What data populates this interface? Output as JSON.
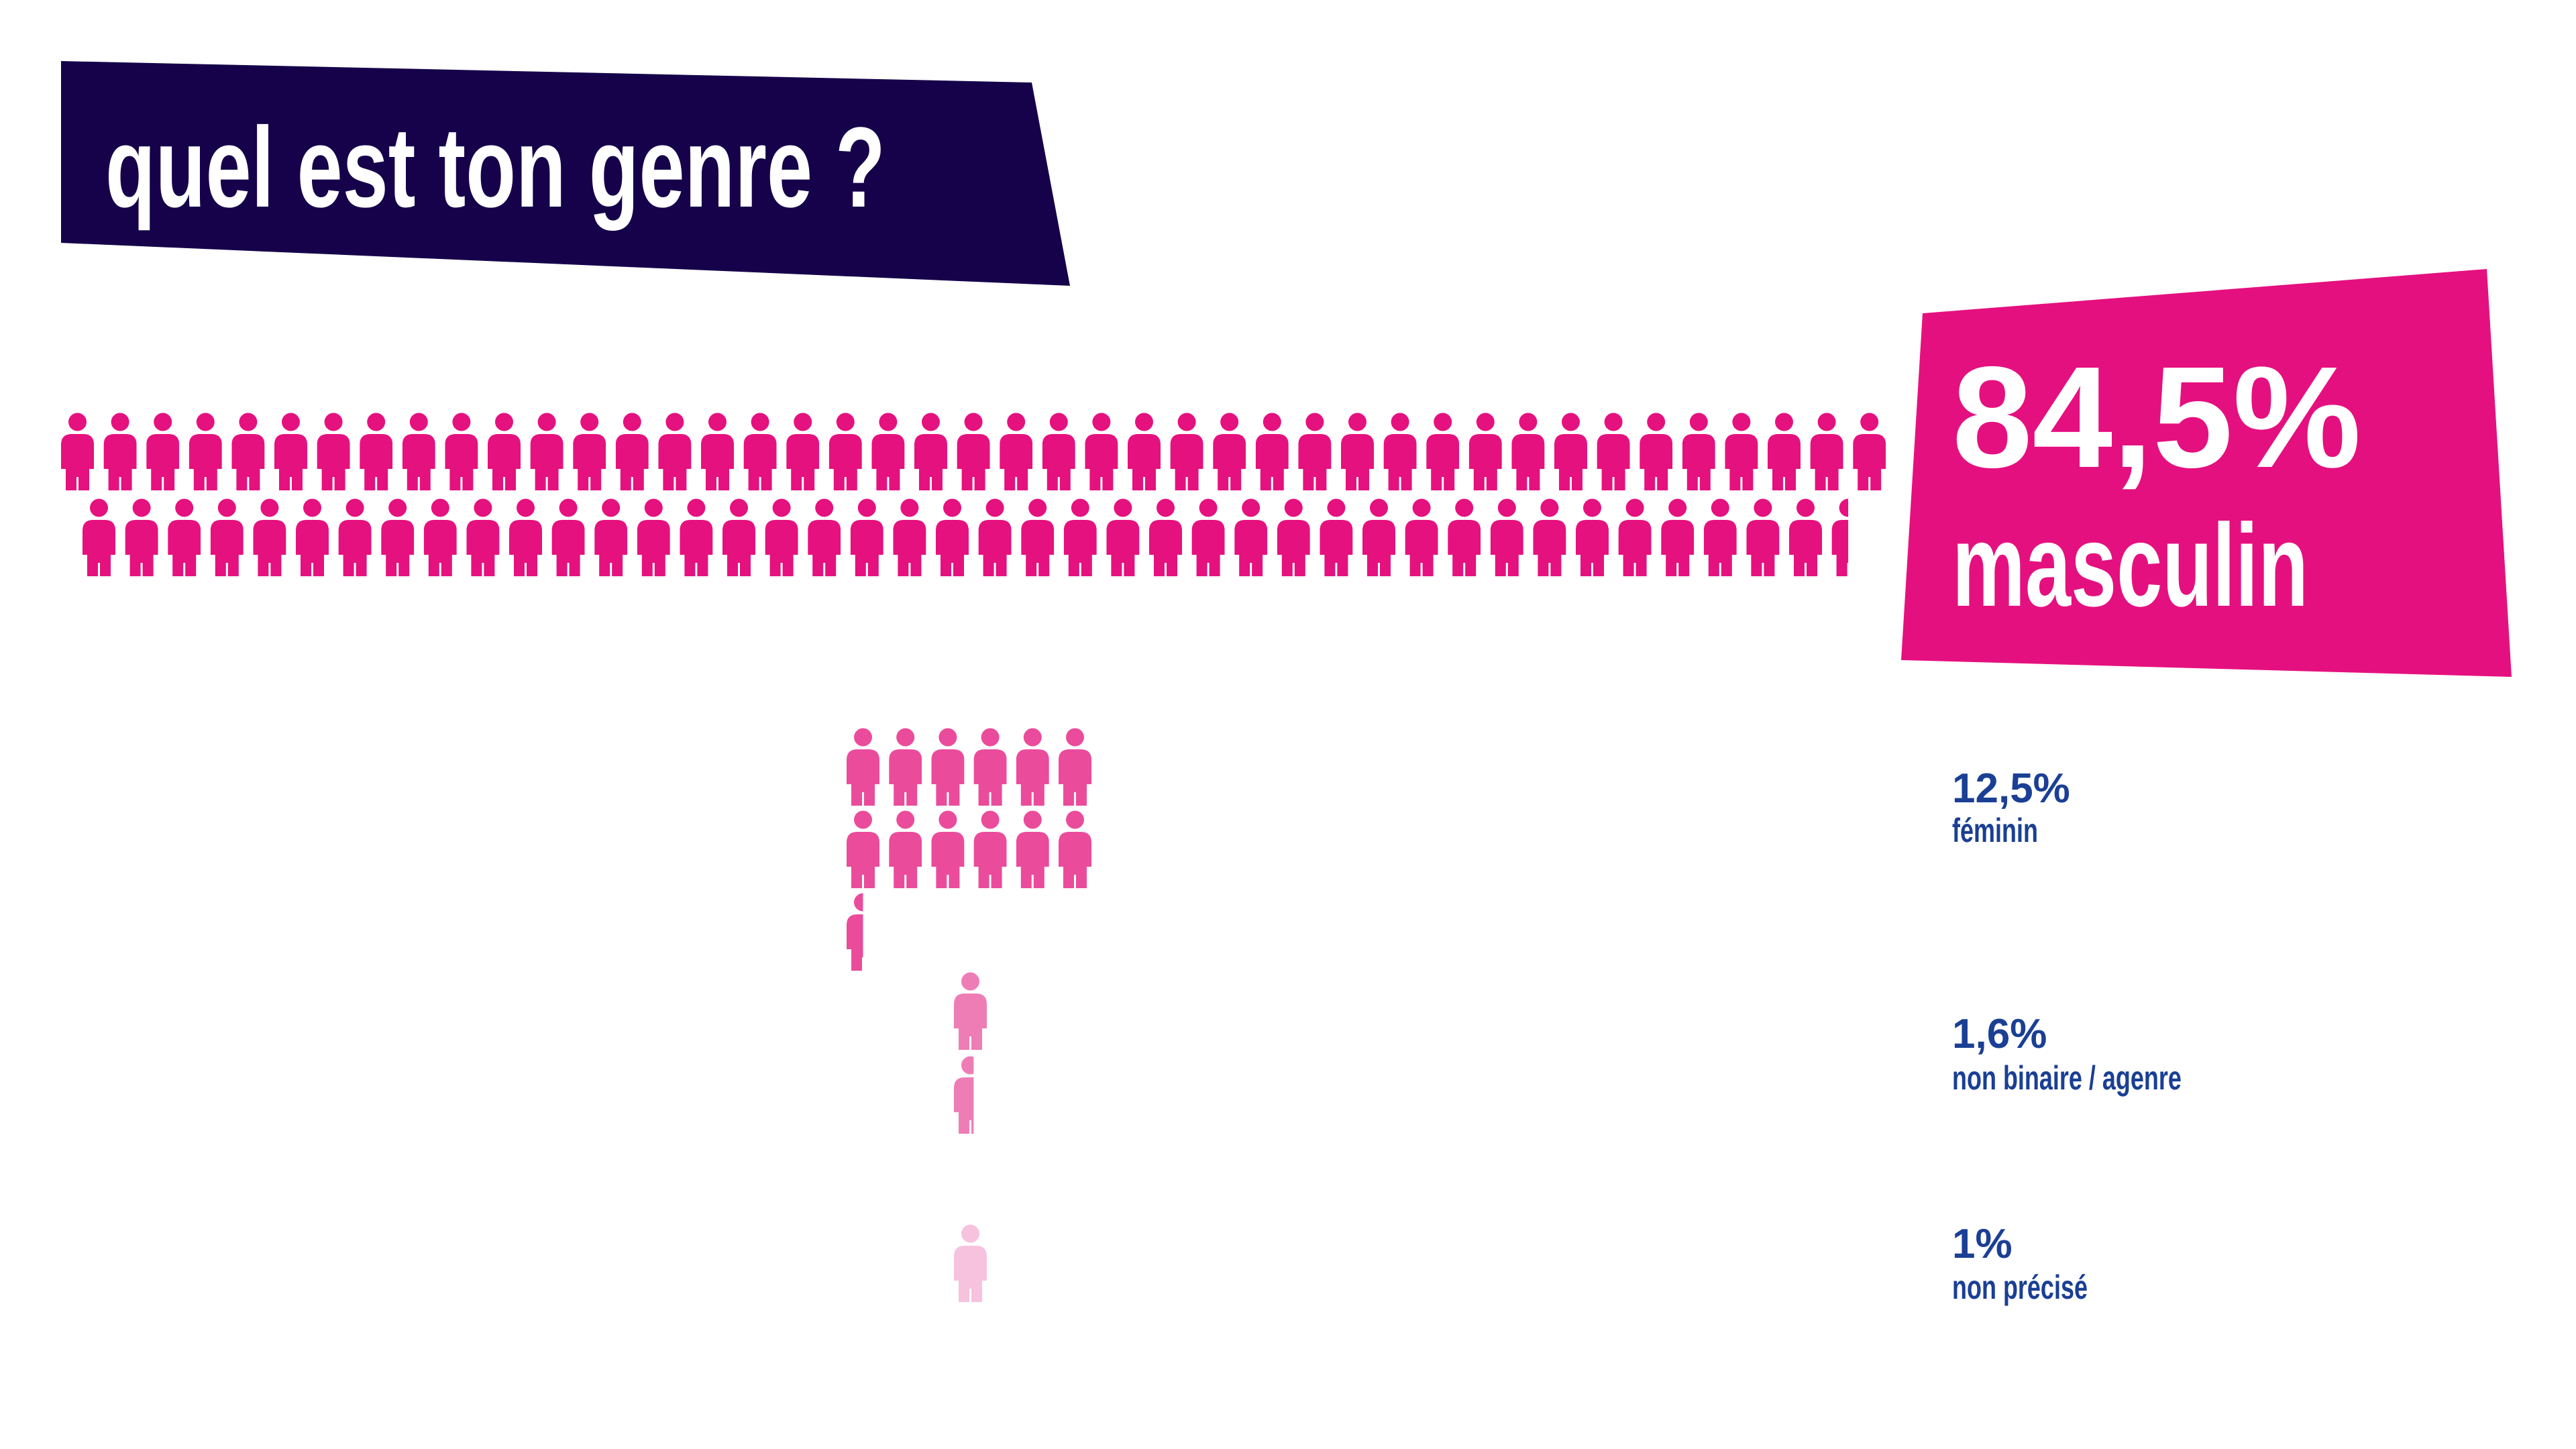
{
  "chart_data": {
    "type": "pictogram",
    "title": "quel est ton genre ?",
    "categories": [
      "masculin",
      "féminin",
      "non binaire / agenre",
      "non précisé"
    ],
    "values": [
      84.5,
      12.5,
      1.6,
      1
    ],
    "value_labels": [
      "84,5%",
      "12,5%",
      "1,6%",
      "1%"
    ],
    "colors": [
      "#e5117f",
      "#ea4c9b",
      "#ee7db6",
      "#f6c2dd"
    ]
  }
}
